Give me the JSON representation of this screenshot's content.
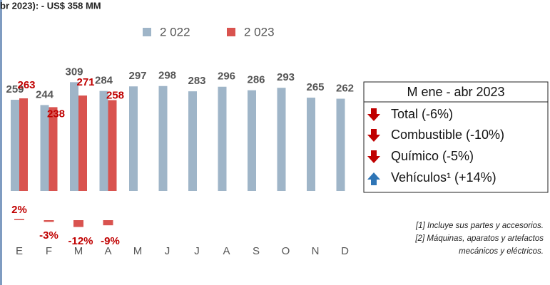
{
  "chart_data": {
    "type": "bar",
    "title": "br 2023):  - US$ 358 MM",
    "categories": [
      "E",
      "F",
      "M",
      "A",
      "M",
      "J",
      "J",
      "A",
      "S",
      "O",
      "N",
      "D"
    ],
    "series": [
      {
        "name": "2 022",
        "color": "#9fb5c8",
        "values": [
          259,
          244,
          309,
          284,
          297,
          298,
          283,
          296,
          286,
          293,
          265,
          262
        ]
      },
      {
        "name": "2 023",
        "color": "#d9534f",
        "values": [
          263,
          238,
          271,
          258,
          null,
          null,
          null,
          null,
          null,
          null,
          null,
          null
        ]
      }
    ],
    "ylim": [
      0,
      340
    ],
    "change": {
      "values": [
        2,
        -3,
        -12,
        -9
      ],
      "value_labels": [
        "2%",
        "-3%",
        "-12%",
        "-9%"
      ],
      "color": "#d9534f"
    },
    "box": {
      "title": "M ene - abr 2023",
      "items": [
        "Total (-6%)",
        "Combustible (-10%)",
        "Químico (-5%)",
        "Vehículos¹ (+14%)"
      ]
    },
    "notes": [
      "[1] Incluye sus partes y accesorios.",
      "[2] Máquinas, aparatos y artefactos",
      "mecánicos y eléctricos."
    ]
  }
}
